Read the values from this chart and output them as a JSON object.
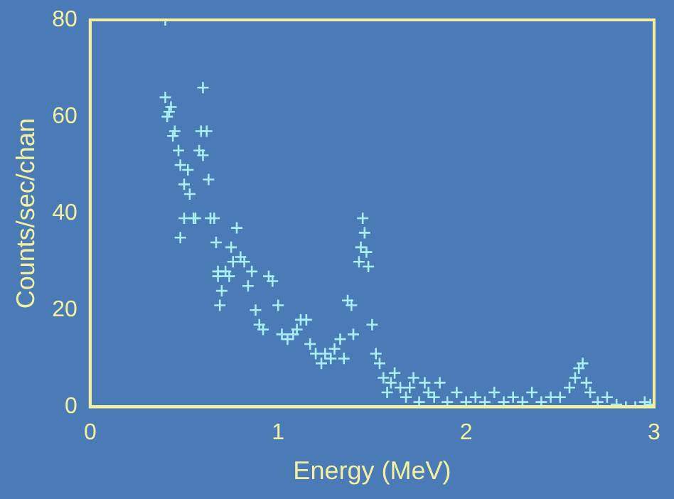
{
  "chart_data": {
    "type": "scatter",
    "xlabel": "Energy (MeV)",
    "ylabel": "Counts/sec/chan",
    "marker": "cross",
    "grid": false,
    "xlim": [
      0,
      3
    ],
    "ylim": [
      0,
      80
    ],
    "xticks": [
      0,
      1,
      2,
      3
    ],
    "yticks": [
      0,
      20,
      40,
      60,
      80
    ],
    "series": [
      {
        "color": "#a8eef4",
        "x": [
          0.4,
          0.4,
          0.42,
          0.43,
          0.41,
          0.44,
          0.45,
          0.47,
          0.48,
          0.5,
          0.52,
          0.53,
          0.5,
          0.48,
          0.55,
          0.56,
          0.59,
          0.58,
          0.6,
          0.62,
          0.6,
          0.63,
          0.64,
          0.66,
          0.67,
          0.68,
          0.68,
          0.69,
          0.7,
          0.72,
          0.74,
          0.76,
          0.75,
          0.78,
          0.8,
          0.82,
          0.84,
          0.86,
          0.88,
          0.9,
          0.92,
          0.95,
          0.97,
          1.0,
          1.02,
          1.05,
          1.08,
          1.1,
          1.12,
          1.15,
          1.17,
          1.2,
          1.23,
          1.25,
          1.28,
          1.3,
          1.33,
          1.35,
          1.37,
          1.39,
          1.4,
          1.43,
          1.44,
          1.45,
          1.46,
          1.47,
          1.48,
          1.5,
          1.52,
          1.54,
          1.56,
          1.58,
          1.6,
          1.62,
          1.65,
          1.68,
          1.7,
          1.72,
          1.75,
          1.78,
          1.8,
          1.83,
          1.86,
          1.9,
          1.95,
          2.0,
          2.05,
          2.1,
          2.15,
          2.2,
          2.25,
          2.3,
          2.35,
          2.4,
          2.45,
          2.5,
          2.55,
          2.58,
          2.6,
          2.62,
          2.64,
          2.66,
          2.7,
          2.75,
          2.8,
          2.85,
          2.9,
          2.95,
          2.98
        ],
        "values": [
          80,
          64,
          61,
          62,
          60,
          56,
          57,
          53,
          50,
          46,
          49,
          44,
          39,
          35,
          39,
          39,
          57,
          53,
          66,
          57,
          52,
          47,
          39,
          39,
          34,
          28,
          27,
          21,
          24,
          28,
          27,
          30,
          33,
          37,
          31,
          30,
          25,
          28,
          20,
          17,
          16,
          27,
          26,
          21,
          15,
          14,
          15,
          16,
          18,
          18,
          13,
          11,
          9,
          11,
          10,
          12,
          14,
          10,
          22,
          21,
          15,
          30,
          33,
          39,
          36,
          32,
          29,
          17,
          11,
          9,
          6,
          3,
          5,
          7,
          4,
          2,
          4,
          6,
          1,
          5,
          3,
          2,
          5,
          1,
          3,
          1,
          2,
          1,
          3,
          1,
          2,
          1,
          3,
          1,
          2,
          2,
          4,
          6,
          8,
          9,
          5,
          3,
          1,
          2,
          0.5,
          0,
          0,
          1,
          0.5
        ]
      }
    ]
  }
}
